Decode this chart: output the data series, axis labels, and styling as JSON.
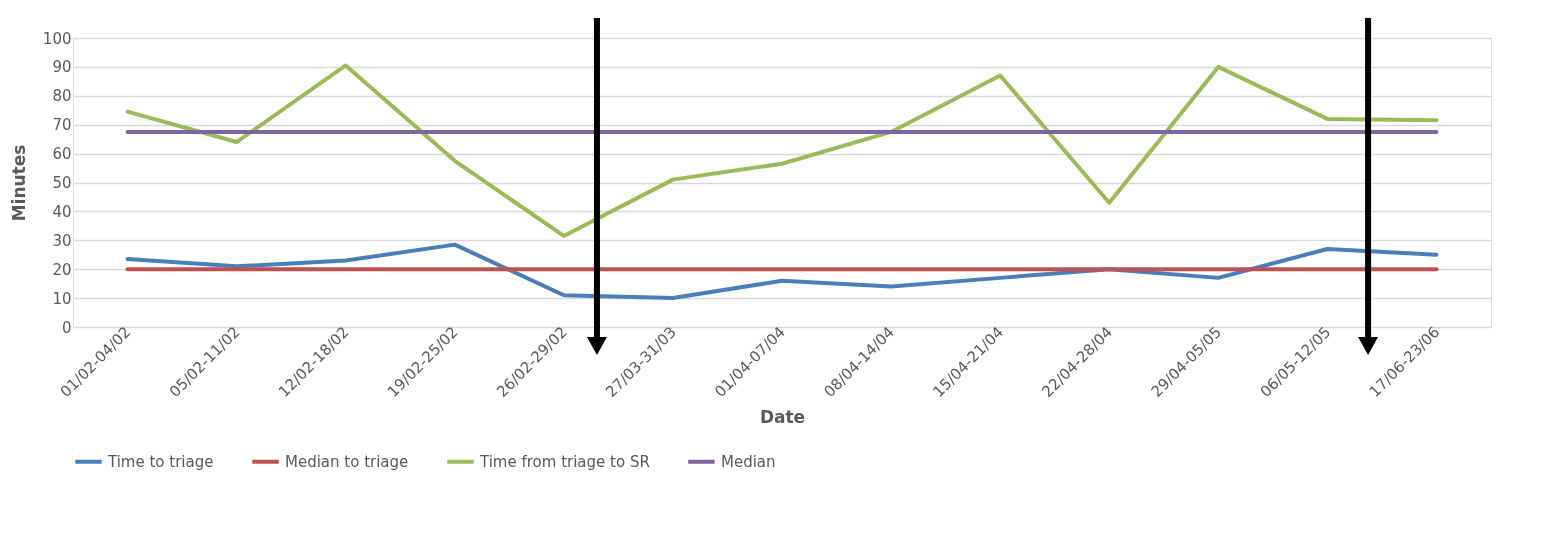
{
  "chart_data": {
    "type": "line",
    "xlabel": "Date",
    "ylabel": "Minutes",
    "categories": [
      "01/02-04/02",
      "05/02-11/02",
      "12/02-18/02",
      "19/02-25/02",
      "26/02-29/02",
      "27/03-31/03",
      "01/04-07/04",
      "08/04-14/04",
      "15/04-21/04",
      "22/04-28/04",
      "29/04-05/05",
      "06/05-12/05",
      "17/06-23/06"
    ],
    "series": [
      {
        "name": "Time to triage",
        "color": "#4a7ebb",
        "values": [
          23.5,
          21,
          23,
          28.5,
          11,
          10,
          16,
          14,
          17,
          20,
          17,
          27,
          25
        ]
      },
      {
        "name": "Median to triage",
        "color": "#c0504d",
        "values": [
          20,
          20,
          20,
          20,
          20,
          20,
          20,
          20,
          20,
          20,
          20,
          20,
          20
        ]
      },
      {
        "name": "Time from triage to SR",
        "color": "#9bbb59",
        "values": [
          74.5,
          64,
          90.5,
          57.5,
          31.5,
          51,
          56.5,
          67.5,
          87,
          43,
          90,
          72,
          71.5
        ]
      },
      {
        "name": "Median",
        "color": "#8064a2",
        "values": [
          67.5,
          67.5,
          67.5,
          67.5,
          67.5,
          67.5,
          67.5,
          67.5,
          67.5,
          67.5,
          67.5,
          67.5,
          67.5
        ]
      }
    ],
    "ylim": [
      0,
      100
    ],
    "yticks": [
      0,
      10,
      20,
      30,
      40,
      50,
      60,
      70,
      80,
      90,
      100
    ],
    "grid": "y",
    "legend": "bottom",
    "marker": "none",
    "line_style": "solid"
  }
}
